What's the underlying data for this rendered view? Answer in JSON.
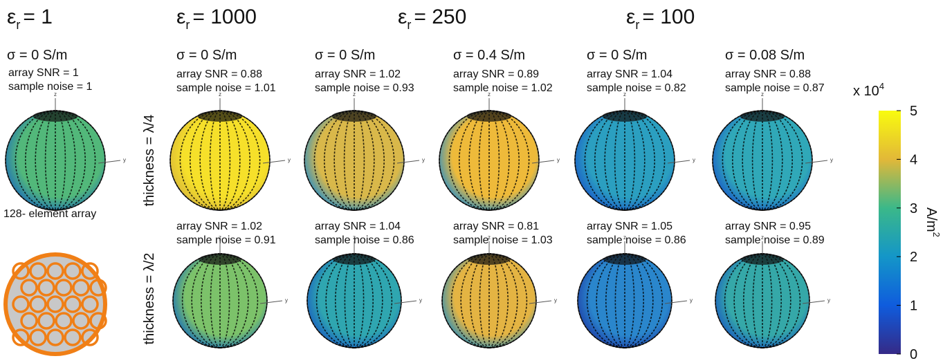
{
  "reference": {
    "epsilon": {
      "symbol": "ε",
      "sub": "r",
      "value": "= 1"
    },
    "sigma": "σ = 0 S/m",
    "snr": "array SNR = 1",
    "noise": "sample noise = 1",
    "array_label": "128- element array"
  },
  "groups": [
    {
      "symbol": "ε",
      "sub": "r",
      "value": "= 1000"
    },
    {
      "symbol": "ε",
      "sub": "r",
      "value": "= 250"
    },
    {
      "symbol": "ε",
      "sub": "r",
      "value": "= 100"
    }
  ],
  "row_labels": [
    "thickness = λ/4",
    "thickness = λ/2"
  ],
  "axis_labels": [
    "z",
    "y"
  ],
  "columns": [
    {
      "sigma": "σ = 0 S/m",
      "rows": [
        {
          "snr": "array SNR = 0.88",
          "noise": "sample noise = 1.01"
        },
        {
          "snr": "array SNR = 1.02",
          "noise": "sample noise = 0.91"
        }
      ]
    },
    {
      "sigma": "σ = 0 S/m",
      "rows": [
        {
          "snr": "array SNR = 1.02",
          "noise": "sample noise = 0.93"
        },
        {
          "snr": "array SNR = 1.04",
          "noise": "sample noise = 0.86"
        }
      ]
    },
    {
      "sigma": "σ = 0.4 S/m",
      "rows": [
        {
          "snr": "array SNR = 0.89",
          "noise": "sample noise = 1.02"
        },
        {
          "snr": "array SNR = 0.81",
          "noise": "sample noise = 1.03"
        }
      ]
    },
    {
      "sigma": "σ = 0 S/m",
      "rows": [
        {
          "snr": "array SNR = 1.04",
          "noise": "sample noise = 0.82"
        },
        {
          "snr": "array SNR = 1.05",
          "noise": "sample noise = 0.86"
        }
      ]
    },
    {
      "sigma": "σ = 0.08 S/m",
      "rows": [
        {
          "snr": "array SNR = 0.88",
          "noise": "sample noise = 0.87"
        },
        {
          "snr": "array SNR = 0.95",
          "noise": "sample noise = 0.89"
        }
      ]
    }
  ],
  "colorbar": {
    "multiplier": "x 10",
    "exponent": "4",
    "label": "A/m",
    "label_exp": "2",
    "range": [
      0,
      5
    ],
    "ticks": [
      0,
      1,
      2,
      3,
      4,
      5
    ]
  }
}
